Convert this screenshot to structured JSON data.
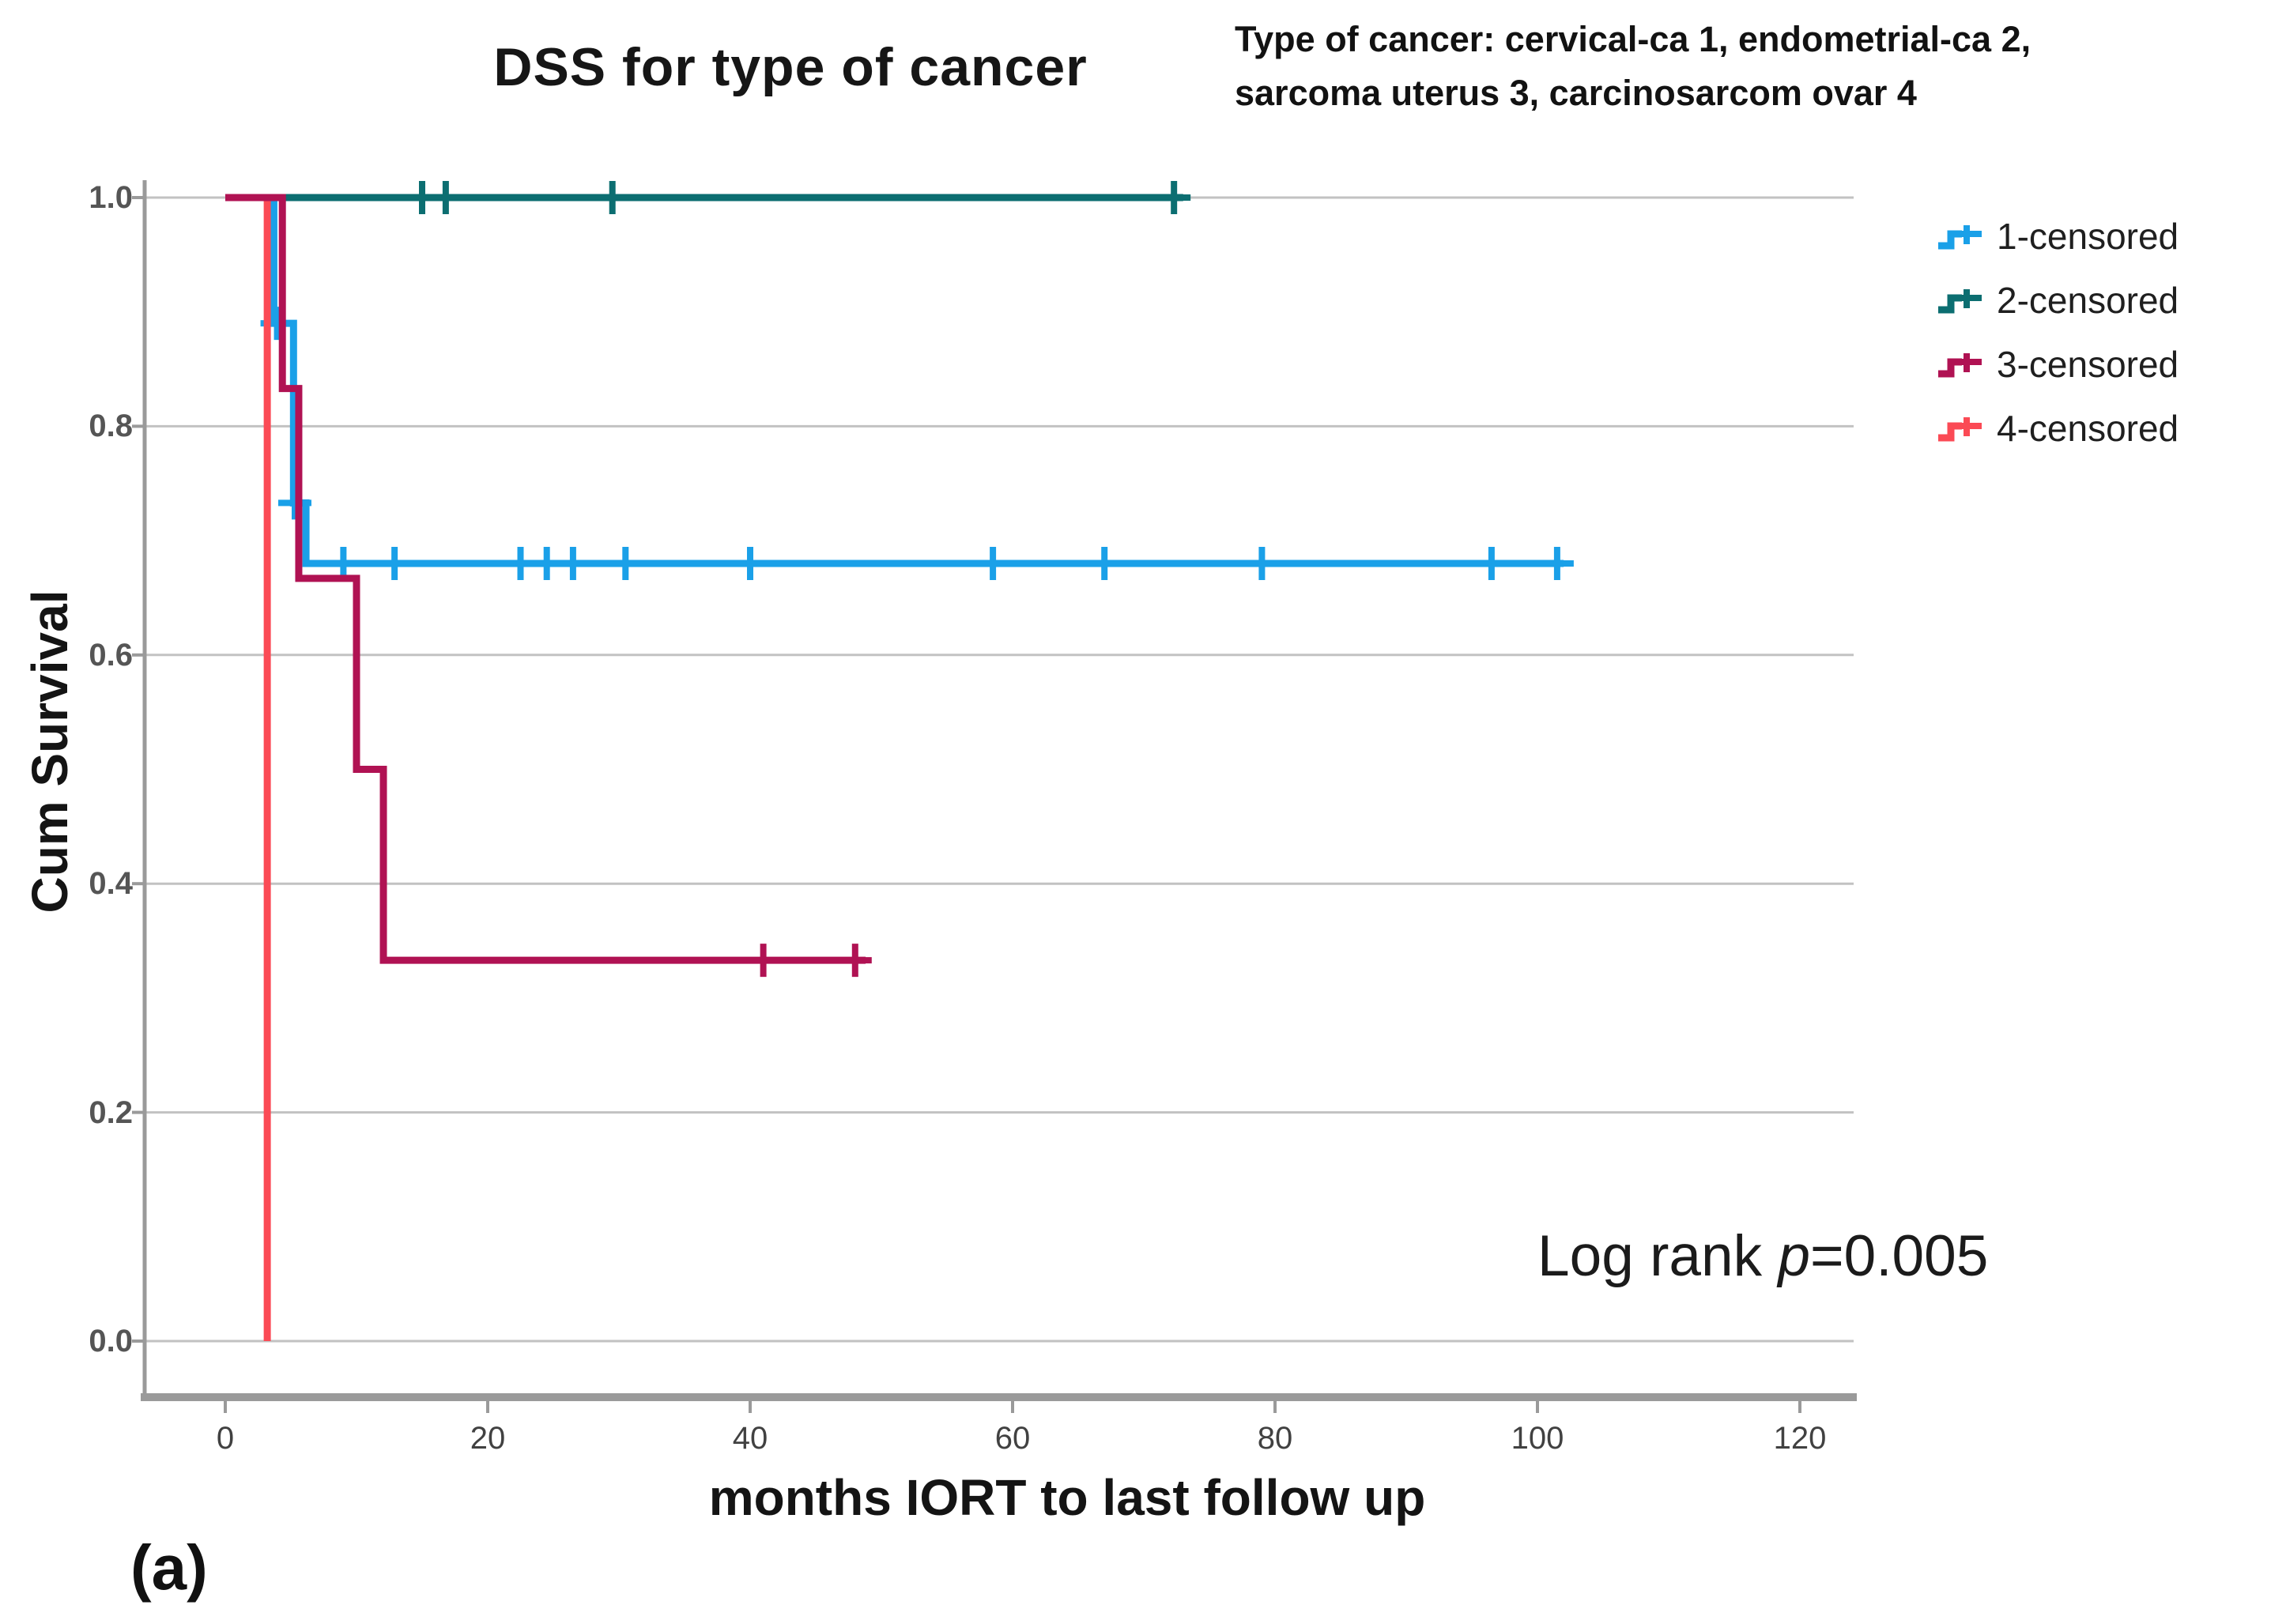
{
  "title": "DSS for type of cancer",
  "annotation": {
    "line1": "Type of cancer: cervical-ca 1, endometrial-ca 2,",
    "line2": "sarcoma uterus 3, carcinosarcom ovar 4"
  },
  "log_rank": {
    "prefix": "Log rank ",
    "variable": "p",
    "value": "=0.005"
  },
  "panel_label": "(a)",
  "legend": [
    {
      "label": "1-censored",
      "color": "#1aa0e8"
    },
    {
      "label": "2-censored",
      "color": "#0c6e71"
    },
    {
      "label": "3-censored",
      "color": "#b01253"
    },
    {
      "label": "4-censored",
      "color": "#fb4a55"
    }
  ],
  "colors": {
    "gridline": "#c2c2c2",
    "axis": "#9a9a9a",
    "text": "#1b1b1b"
  },
  "chart_data": {
    "type": "line",
    "subtype": "kaplan-meier-step",
    "title": "DSS for type of cancer",
    "xlabel": "months IORT to last follow up",
    "ylabel": "Cum Survival",
    "xlim": [
      0,
      124
    ],
    "ylim": [
      0,
      1.0
    ],
    "x_ticks": [
      0,
      20,
      40,
      60,
      80,
      100,
      120
    ],
    "y_ticks": [
      "1.0",
      "0.8",
      "0.6",
      "0.4",
      "0.2",
      "0.0"
    ],
    "y_tick_values": [
      1.0,
      0.8,
      0.6,
      0.4,
      0.2,
      0.0
    ],
    "grid": true,
    "legend_position": "right",
    "series": [
      {
        "name": "1 cervical-ca",
        "legend": "1-censored",
        "color": "#1aa0e8",
        "width": 9,
        "steps": [
          [
            0,
            1.0
          ],
          [
            3.7,
            1.0
          ],
          [
            3.7,
            0.89
          ],
          [
            5.2,
            0.89
          ],
          [
            5.2,
            0.733
          ],
          [
            6.15,
            0.733
          ],
          [
            6.15,
            0.68
          ],
          [
            102,
            0.68
          ]
        ],
        "censors": [
          [
            3.95,
            0.89
          ],
          [
            5.3,
            0.733
          ],
          [
            9,
            0.68
          ],
          [
            12.9,
            0.68
          ],
          [
            22.5,
            0.68
          ],
          [
            24.5,
            0.68
          ],
          [
            26.5,
            0.68
          ],
          [
            30.5,
            0.68
          ],
          [
            40,
            0.68
          ],
          [
            58.5,
            0.68
          ],
          [
            67,
            0.68
          ],
          [
            79,
            0.68
          ],
          [
            96.5,
            0.68
          ],
          [
            101.5,
            0.68
          ]
        ]
      },
      {
        "name": "2 endometrial-ca",
        "legend": "2-censored",
        "color": "#0c6e71",
        "width": 9,
        "steps": [
          [
            0,
            1.0
          ],
          [
            73,
            1.0
          ]
        ],
        "censors": [
          [
            15,
            1.0
          ],
          [
            16.8,
            1.0
          ],
          [
            29.5,
            1.0
          ],
          [
            72.3,
            1.0
          ]
        ]
      },
      {
        "name": "3 sarcoma uterus",
        "legend": "3-censored",
        "color": "#b01253",
        "width": 9,
        "steps": [
          [
            0,
            1.0
          ],
          [
            4.35,
            1.0
          ],
          [
            4.35,
            0.833
          ],
          [
            5.6,
            0.833
          ],
          [
            5.6,
            0.667
          ],
          [
            10,
            0.667
          ],
          [
            10,
            0.5
          ],
          [
            12.05,
            0.5
          ],
          [
            12.05,
            0.333
          ],
          [
            48.8,
            0.333
          ]
        ],
        "censors": [
          [
            41,
            0.333
          ],
          [
            48,
            0.333
          ]
        ]
      },
      {
        "name": "4 carcinosarcom ovar",
        "legend": "4-censored",
        "color": "#fb4a55",
        "width": 9,
        "steps": [
          [
            0.3,
            1.0
          ],
          [
            3.2,
            1.0
          ],
          [
            3.2,
            0.0
          ]
        ],
        "censors": []
      }
    ],
    "draw_order": [
      0,
      1,
      3,
      2
    ]
  }
}
